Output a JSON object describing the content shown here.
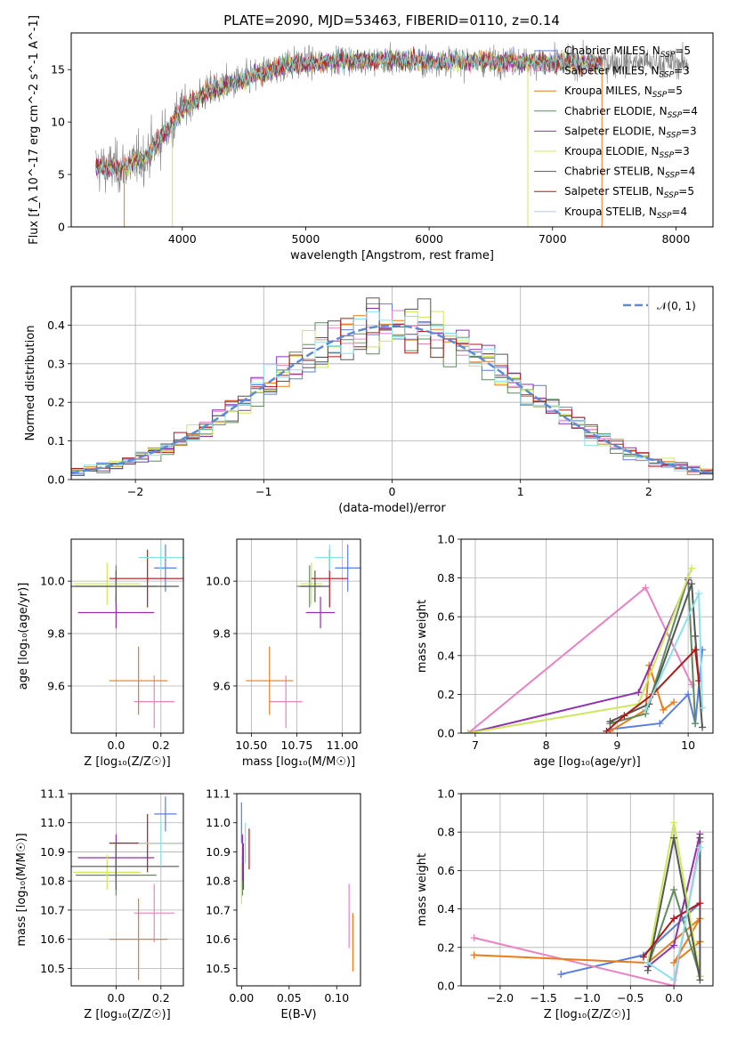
{
  "figure": {
    "title": "PLATE=2090, MJD=53463, FIBERID=0110, z=0.14"
  },
  "colors": {
    "Chabrier MILES": "#5b7fe0",
    "Salpeter MILES": "#e882c0",
    "Kroupa MILES": "#e87b1c",
    "Chabrier ELODIE": "#5f8c5c",
    "Salpeter ELODIE": "#8e32ad",
    "Kroupa ELODIE": "#cde85a",
    "Chabrier STELIB": "#555555",
    "Salpeter STELIB": "#b01818",
    "Kroupa STELIB": "#8ee0e8",
    "data": "#7f7f7f",
    "normal": "#5b8bd6",
    "grid": "#b0b0b0"
  },
  "models": [
    {
      "name": "Chabrier MILES",
      "nssp": "5"
    },
    {
      "name": "Salpeter MILES",
      "nssp": "3"
    },
    {
      "name": "Kroupa MILES",
      "nssp": "5"
    },
    {
      "name": "Chabrier ELODIE",
      "nssp": "4"
    },
    {
      "name": "Salpeter ELODIE",
      "nssp": "3"
    },
    {
      "name": "Kroupa ELODIE",
      "nssp": "3"
    },
    {
      "name": "Chabrier STELIB",
      "nssp": "4"
    },
    {
      "name": "Salpeter STELIB",
      "nssp": "5"
    },
    {
      "name": "Kroupa STELIB",
      "nssp": "4"
    }
  ],
  "chart_data": [
    {
      "id": "spectrum",
      "type": "line",
      "xlabel": "wavelength [Angstrom, rest frame]",
      "ylabel": "Flux [f_λ 10^-17 erg cm^-2 s^-1 A^-1]",
      "xlim": [
        3100,
        8300
      ],
      "ylim": [
        0,
        18.5
      ],
      "xticks": [
        4000,
        5000,
        6000,
        7000,
        8000
      ],
      "yticks": [
        0,
        5,
        10,
        15
      ],
      "legend": "top-right",
      "continuum": {
        "x": [
          3300,
          3500,
          3700,
          3900,
          4000,
          4200,
          4500,
          4800,
          5000,
          5300,
          5600,
          6000,
          6500,
          7000,
          7500,
          8000
        ],
        "y": [
          5.7,
          5.6,
          6.7,
          9.5,
          11.2,
          12.9,
          14.0,
          15.4,
          15.6,
          15.9,
          15.9,
          15.8,
          15.8,
          15.7,
          15.7,
          15.6
        ]
      },
      "data_range": [
        3300,
        8100
      ],
      "model_range": [
        3300,
        7400
      ],
      "drops": [
        {
          "x": 3530,
          "color": "#e87b1c"
        },
        {
          "x": 3920,
          "color": "#cde85a"
        },
        {
          "x": 6800,
          "color": "#cde85a"
        },
        {
          "x": 7400,
          "color": "#e87b1c"
        }
      ]
    },
    {
      "id": "residuals",
      "type": "histogram",
      "xlabel": "(data-model)/error",
      "ylabel": "Normed distribution",
      "xlim": [
        -2.5,
        2.5
      ],
      "ylim": [
        0,
        0.5
      ],
      "xticks": [
        -2,
        -1,
        0,
        1,
        2
      ],
      "yticks": [
        0.0,
        0.1,
        0.2,
        0.3,
        0.4
      ],
      "bin_width": 0.1,
      "reference": {
        "name": "𝒩(0, 1)",
        "mean": 0,
        "sigma": 1
      },
      "legend": "top-right"
    },
    {
      "id": "age_vs_Z",
      "type": "scatter",
      "xlabel": "Z [log₁₀(Z/Z☉)]",
      "ylabel": "age  [log₁₀(age/yr)]",
      "xlim": [
        -0.2,
        0.3
      ],
      "ylim": [
        9.42,
        10.16
      ],
      "xticks": [
        0.0,
        0.2
      ],
      "yticks": [
        9.6,
        9.8,
        10.0
      ],
      "points": [
        {
          "model": "Chabrier MILES",
          "x": 0.22,
          "y": 10.05,
          "xerr": 0.05,
          "yerr": 0.09
        },
        {
          "model": "Salpeter MILES",
          "x": 0.17,
          "y": 9.54,
          "xerr": 0.09,
          "yerr": 0.1
        },
        {
          "model": "Kroupa MILES",
          "x": 0.1,
          "y": 9.62,
          "xerr": 0.13,
          "yerr": 0.13
        },
        {
          "model": "Chabrier ELODIE",
          "x": 0.0,
          "y": 9.98,
          "xerr": 0.18,
          "yerr": 0.08
        },
        {
          "model": "Salpeter ELODIE",
          "x": 0.0,
          "y": 9.88,
          "xerr": 0.17,
          "yerr": 0.06
        },
        {
          "model": "Kroupa ELODIE",
          "x": -0.04,
          "y": 9.99,
          "xerr": 0.15,
          "yerr": 0.08
        },
        {
          "model": "Chabrier STELIB",
          "x": 0.0,
          "y": 9.98,
          "xerr": 0.28,
          "yerr": 0.06
        },
        {
          "model": "Salpeter STELIB",
          "x": 0.14,
          "y": 10.01,
          "xerr": 0.17,
          "yerr": 0.11
        },
        {
          "model": "Kroupa STELIB",
          "x": 0.2,
          "y": 10.09,
          "xerr": 0.1,
          "yerr": 0.05
        }
      ]
    },
    {
      "id": "age_vs_mass",
      "type": "scatter",
      "xlabel": "mass [log₁₀(M/M☉)]",
      "ylabel": "",
      "xlim": [
        10.42,
        11.1
      ],
      "ylim": [
        9.42,
        10.16
      ],
      "xticks": [
        10.5,
        10.75,
        11.0
      ],
      "xticklabels": [
        "10.50",
        "10.75",
        "11.00"
      ],
      "yticks": [
        9.6,
        9.8,
        10.0
      ],
      "points": [
        {
          "model": "Chabrier MILES",
          "x": 11.03,
          "y": 10.05,
          "xerr": 0.07,
          "yerr": 0.09
        },
        {
          "model": "Salpeter MILES",
          "x": 10.69,
          "y": 9.54,
          "xerr": 0.09,
          "yerr": 0.1
        },
        {
          "model": "Kroupa MILES",
          "x": 10.6,
          "y": 9.62,
          "xerr": 0.13,
          "yerr": 0.13
        },
        {
          "model": "Chabrier ELODIE",
          "x": 10.82,
          "y": 9.98,
          "xerr": 0.07,
          "yerr": 0.08
        },
        {
          "model": "Salpeter ELODIE",
          "x": 10.88,
          "y": 9.88,
          "xerr": 0.08,
          "yerr": 0.06
        },
        {
          "model": "Kroupa ELODIE",
          "x": 10.83,
          "y": 9.99,
          "xerr": 0.06,
          "yerr": 0.08
        },
        {
          "model": "Chabrier STELIB",
          "x": 10.85,
          "y": 9.98,
          "xerr": 0.08,
          "yerr": 0.06
        },
        {
          "model": "Salpeter STELIB",
          "x": 10.93,
          "y": 10.01,
          "xerr": 0.1,
          "yerr": 0.11
        },
        {
          "model": "Kroupa STELIB",
          "x": 10.93,
          "y": 10.09,
          "xerr": 0.08,
          "yerr": 0.05
        }
      ]
    },
    {
      "id": "mass_weight_vs_age",
      "type": "line",
      "xlabel": "age  [log₁₀(age/yr)]",
      "ylabel": "mass weight",
      "xlim": [
        6.8,
        10.35
      ],
      "ylim": [
        0,
        1
      ],
      "xticks": [
        7,
        8,
        9,
        10
      ],
      "yticks": [
        0.0,
        0.2,
        0.4,
        0.6,
        0.8,
        1.0
      ],
      "series": [
        {
          "model": "Chabrier MILES",
          "x": [
            8.9,
            9.6,
            10.0,
            10.1,
            10.2
          ],
          "y": [
            0.02,
            0.05,
            0.2,
            0.05,
            0.43
          ]
        },
        {
          "model": "Salpeter MILES",
          "x": [
            6.9,
            9.4,
            10.05
          ],
          "y": [
            0.0,
            0.75,
            0.25
          ]
        },
        {
          "model": "Kroupa MILES",
          "x": [
            8.9,
            9.4,
            9.45,
            9.65,
            9.8
          ],
          "y": [
            0.01,
            0.12,
            0.35,
            0.12,
            0.16
          ]
        },
        {
          "model": "Chabrier ELODIE",
          "x": [
            8.9,
            9.4,
            10.0,
            10.1
          ],
          "y": [
            0.05,
            0.1,
            0.8,
            0.05
          ]
        },
        {
          "model": "Salpeter ELODIE",
          "x": [
            6.9,
            9.3,
            10.0
          ],
          "y": [
            0.0,
            0.21,
            0.79
          ]
        },
        {
          "model": "Kroupa ELODIE",
          "x": [
            6.9,
            9.3,
            10.05
          ],
          "y": [
            0.0,
            0.15,
            0.85
          ]
        },
        {
          "model": "Chabrier STELIB",
          "x": [
            8.9,
            9.45,
            10.05,
            10.1,
            10.2
          ],
          "y": [
            0.06,
            0.15,
            0.77,
            0.5,
            0.03
          ]
        },
        {
          "model": "Salpeter STELIB",
          "x": [
            8.85,
            9.1,
            9.5,
            10.1,
            10.15
          ],
          "y": [
            0.01,
            0.09,
            0.2,
            0.43,
            0.27
          ]
        },
        {
          "model": "Kroupa STELIB",
          "x": [
            9.4,
            10.15,
            10.2
          ],
          "y": [
            0.12,
            0.72,
            0.13
          ]
        }
      ]
    },
    {
      "id": "mass_vs_Z",
      "type": "scatter",
      "xlabel": "Z [log₁₀(Z/Z☉)]",
      "ylabel": "mass [log₁₀(M/M☉)]",
      "xlim": [
        -0.2,
        0.3
      ],
      "ylim": [
        10.44,
        11.1
      ],
      "xticks": [
        0.0,
        0.2
      ],
      "yticks": [
        10.5,
        10.6,
        10.7,
        10.8,
        10.9,
        11.0,
        11.1
      ],
      "points": [
        {
          "model": "Chabrier MILES",
          "x": 0.22,
          "y": 11.03,
          "xerr": 0.05,
          "yerr": 0.06
        },
        {
          "model": "Salpeter MILES",
          "x": 0.17,
          "y": 10.69,
          "xerr": 0.09,
          "yerr": 0.1
        },
        {
          "model": "Kroupa MILES",
          "x": 0.1,
          "y": 10.6,
          "xerr": 0.13,
          "yerr": 0.14
        },
        {
          "model": "Chabrier ELODIE",
          "x": 0.0,
          "y": 10.82,
          "xerr": 0.18,
          "yerr": 0.07
        },
        {
          "model": "Salpeter ELODIE",
          "x": 0.0,
          "y": 10.88,
          "xerr": 0.17,
          "yerr": 0.08
        },
        {
          "model": "Kroupa ELODIE",
          "x": -0.04,
          "y": 10.83,
          "xerr": 0.15,
          "yerr": 0.06
        },
        {
          "model": "Chabrier STELIB",
          "x": 0.0,
          "y": 10.85,
          "xerr": 0.28,
          "yerr": 0.08
        },
        {
          "model": "Salpeter STELIB",
          "x": 0.14,
          "y": 10.93,
          "xerr": 0.17,
          "yerr": 0.1
        },
        {
          "model": "Kroupa STELIB",
          "x": 0.2,
          "y": 10.93,
          "xerr": 0.1,
          "yerr": 0.08
        }
      ]
    },
    {
      "id": "mass_vs_ebv",
      "type": "scatter",
      "xlabel": "E(B-V)",
      "ylabel": "",
      "xlim": [
        -0.005,
        0.125
      ],
      "ylim": [
        10.44,
        11.1
      ],
      "xticks": [
        0.0,
        0.05,
        0.1
      ],
      "xticklabels": [
        "0.00",
        "0.05",
        "0.10"
      ],
      "yticks": [
        10.5,
        10.6,
        10.7,
        10.8,
        10.9,
        11.0,
        11.1
      ],
      "points": [
        {
          "model": "Chabrier MILES",
          "x": 0.0,
          "y": 11.0,
          "yerr": 0.07
        },
        {
          "model": "Salpeter MILES",
          "x": 0.113,
          "y": 10.68,
          "yerr": 0.11
        },
        {
          "model": "Kroupa MILES",
          "x": 0.117,
          "y": 10.59,
          "yerr": 0.1
        },
        {
          "model": "Chabrier ELODIE",
          "x": 0.001,
          "y": 10.82,
          "yerr": 0.07
        },
        {
          "model": "Salpeter ELODIE",
          "x": 0.001,
          "y": 10.88,
          "yerr": 0.08
        },
        {
          "model": "Kroupa ELODIE",
          "x": 0.0,
          "y": 10.79,
          "yerr": 0.07
        },
        {
          "model": "Chabrier STELIB",
          "x": 0.002,
          "y": 10.85,
          "yerr": 0.08
        },
        {
          "model": "Salpeter STELIB",
          "x": 0.008,
          "y": 10.91,
          "yerr": 0.07
        },
        {
          "model": "Kroupa STELIB",
          "x": 0.004,
          "y": 10.93,
          "yerr": 0.07
        }
      ]
    },
    {
      "id": "mass_weight_vs_Z",
      "type": "line",
      "xlabel": "Z [log₁₀(Z/Z☉)]",
      "ylabel": "mass weight",
      "xlim": [
        -2.45,
        0.45
      ],
      "ylim": [
        0,
        1
      ],
      "xticks": [
        -2.0,
        -1.5,
        -1.0,
        -0.5,
        0.0
      ],
      "yticks": [
        0.0,
        0.2,
        0.4,
        0.6,
        0.8,
        1.0
      ],
      "series": [
        {
          "model": "Chabrier MILES",
          "x": [
            -1.3,
            -0.35,
            0.3,
            0.0
          ],
          "y": [
            0.06,
            0.16,
            0.43,
            0.35
          ]
        },
        {
          "model": "Salpeter MILES",
          "x": [
            -2.3,
            0.0,
            0.3
          ],
          "y": [
            0.25,
            0.0,
            0.75
          ]
        },
        {
          "model": "Kroupa MILES",
          "x": [
            -2.3,
            -0.3,
            0.3,
            0.0,
            0.3
          ],
          "y": [
            0.16,
            0.12,
            0.35,
            0.12,
            0.23
          ]
        },
        {
          "model": "Chabrier ELODIE",
          "x": [
            -0.3,
            0.0,
            0.3
          ],
          "y": [
            0.1,
            0.5,
            0.05
          ]
        },
        {
          "model": "Salpeter ELODIE",
          "x": [
            -0.3,
            0.0,
            0.3
          ],
          "y": [
            0.1,
            0.21,
            0.79
          ]
        },
        {
          "model": "Kroupa ELODIE",
          "x": [
            -0.3,
            0.0,
            0.3
          ],
          "y": [
            0.12,
            0.85,
            0.05
          ]
        },
        {
          "model": "Chabrier STELIB",
          "x": [
            -0.3,
            0.0,
            0.3,
            0.3
          ],
          "y": [
            0.08,
            0.77,
            0.03,
            0.77
          ]
        },
        {
          "model": "Salpeter STELIB",
          "x": [
            -0.35,
            0.0,
            0.3
          ],
          "y": [
            0.15,
            0.35,
            0.43
          ]
        },
        {
          "model": "Kroupa STELIB",
          "x": [
            -0.3,
            0.0,
            0.3
          ],
          "y": [
            0.12,
            0.03,
            0.72
          ]
        }
      ]
    }
  ]
}
